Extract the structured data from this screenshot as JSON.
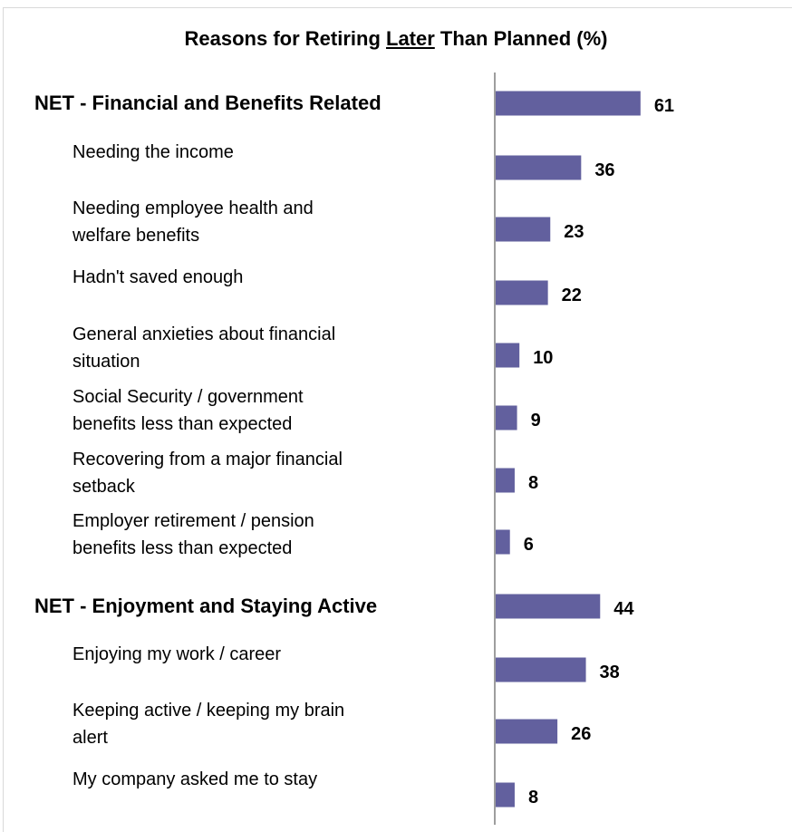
{
  "chart_data": {
    "type": "bar",
    "orientation": "horizontal",
    "title_parts": {
      "before": "Reasons for Retiring ",
      "underlined": "Later",
      "after": " Than Planned (%)"
    },
    "categories": [
      "NET - Financial and Benefits Related",
      "Needing the income",
      "Needing employee health and welfare benefits",
      "Hadn't saved enough",
      "General anxieties about financial situation",
      "Social Security / government benefits less than expected",
      "Recovering from a major financial setback",
      "Employer retirement / pension benefits less than expected",
      "NET - Enjoyment and Staying Active",
      "Enjoying my work / career",
      "Keeping active / keeping my brain alert",
      "My company asked me to stay"
    ],
    "is_net": [
      true,
      false,
      false,
      false,
      false,
      false,
      false,
      false,
      true,
      false,
      false,
      false
    ],
    "values": [
      61,
      36,
      23,
      22,
      10,
      9,
      8,
      6,
      44,
      38,
      26,
      8
    ],
    "bar_color": "#62609e",
    "axis_color": "#7f7f7f",
    "grid": false,
    "legend": "none"
  }
}
